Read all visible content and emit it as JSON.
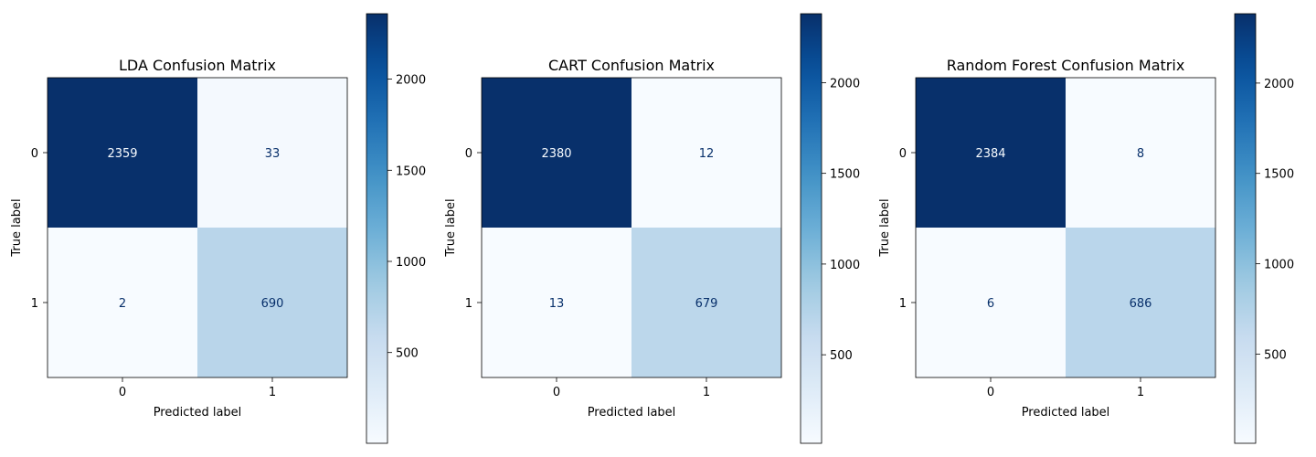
{
  "chart_data": [
    {
      "type": "heatmap",
      "title": "LDA Confusion Matrix",
      "xlabel": "Predicted label",
      "ylabel": "True label",
      "x_ticks": [
        "0",
        "1"
      ],
      "y_ticks": [
        "0",
        "1"
      ],
      "values": [
        [
          2359,
          33
        ],
        [
          2,
          690
        ]
      ],
      "colormap": "Blues",
      "colorbar_ticks": [
        500,
        1000,
        1500,
        2000
      ]
    },
    {
      "type": "heatmap",
      "title": "CART Confusion Matrix",
      "xlabel": "Predicted label",
      "ylabel": "True label",
      "x_ticks": [
        "0",
        "1"
      ],
      "y_ticks": [
        "0",
        "1"
      ],
      "values": [
        [
          2380,
          12
        ],
        [
          13,
          679
        ]
      ],
      "colormap": "Blues",
      "colorbar_ticks": [
        500,
        1000,
        1500,
        2000
      ]
    },
    {
      "type": "heatmap",
      "title": "Random Forest Confusion Matrix",
      "xlabel": "Predicted label",
      "ylabel": "True label",
      "x_ticks": [
        "0",
        "1"
      ],
      "y_ticks": [
        "0",
        "1"
      ],
      "values": [
        [
          2384,
          8
        ],
        [
          6,
          686
        ]
      ],
      "colormap": "Blues",
      "colorbar_ticks": [
        500,
        1000,
        1500,
        2000
      ]
    }
  ]
}
